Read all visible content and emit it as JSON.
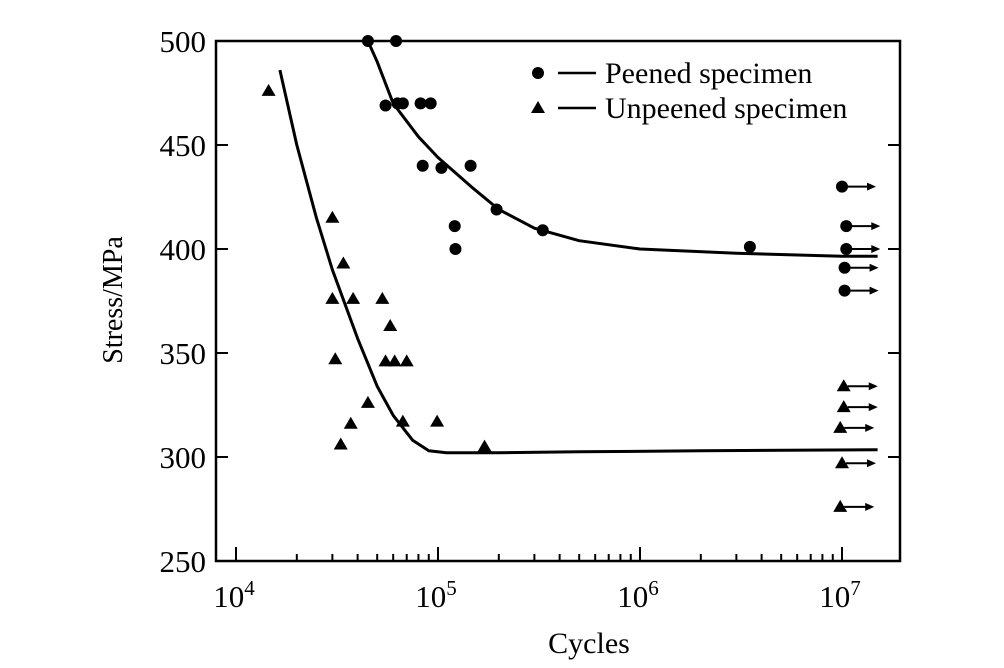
{
  "chart_data": {
    "type": "scatter",
    "xlabel": "Cycles",
    "ylabel": "Stress/MPa",
    "x_scale": "log",
    "xlim": [
      10000,
      20000000
    ],
    "ylim": [
      250,
      500
    ],
    "x_ticks": [
      {
        "value": 10000,
        "base": "10",
        "exp": "4"
      },
      {
        "value": 100000,
        "base": "10",
        "exp": "5"
      },
      {
        "value": 1000000,
        "base": "10",
        "exp": "6"
      },
      {
        "value": 10000000,
        "base": "10",
        "exp": "7"
      }
    ],
    "y_ticks": [
      "250",
      "300",
      "350",
      "400",
      "450",
      "500"
    ],
    "legend_position": "top-right",
    "series": [
      {
        "name": "Peened specimen",
        "marker": "circle",
        "points": [
          {
            "x": 45000,
            "y": 500
          },
          {
            "x": 62000,
            "y": 500
          },
          {
            "x": 55000,
            "y": 469
          },
          {
            "x": 63000,
            "y": 470
          },
          {
            "x": 67000,
            "y": 470
          },
          {
            "x": 82000,
            "y": 470
          },
          {
            "x": 92000,
            "y": 470
          },
          {
            "x": 84000,
            "y": 440
          },
          {
            "x": 104000,
            "y": 439
          },
          {
            "x": 145000,
            "y": 440
          },
          {
            "x": 121000,
            "y": 411
          },
          {
            "x": 122000,
            "y": 400
          },
          {
            "x": 195000,
            "y": 419
          },
          {
            "x": 330000,
            "y": 409
          },
          {
            "x": 3500000,
            "y": 401
          }
        ],
        "runouts": [
          {
            "x": 10000000,
            "y": 430
          },
          {
            "x": 10500000,
            "y": 411
          },
          {
            "x": 10500000,
            "y": 400
          },
          {
            "x": 10300000,
            "y": 391
          },
          {
            "x": 10300000,
            "y": 380
          }
        ],
        "curve": [
          {
            "x": 45000,
            "y": 500
          },
          {
            "x": 50000,
            "y": 490
          },
          {
            "x": 60000,
            "y": 470
          },
          {
            "x": 80000,
            "y": 454
          },
          {
            "x": 100000,
            "y": 444
          },
          {
            "x": 150000,
            "y": 429
          },
          {
            "x": 200000,
            "y": 419
          },
          {
            "x": 300000,
            "y": 410
          },
          {
            "x": 500000,
            "y": 404
          },
          {
            "x": 1000000,
            "y": 400
          },
          {
            "x": 3000000,
            "y": 398
          },
          {
            "x": 10000000,
            "y": 396.5
          },
          {
            "x": 15000000,
            "y": 396.5
          }
        ]
      },
      {
        "name": "Unpeened specimen",
        "marker": "triangle",
        "points": [
          {
            "x": 14500,
            "y": 476
          },
          {
            "x": 30000,
            "y": 415
          },
          {
            "x": 34000,
            "y": 393
          },
          {
            "x": 30000,
            "y": 376
          },
          {
            "x": 38000,
            "y": 376
          },
          {
            "x": 53000,
            "y": 376
          },
          {
            "x": 58000,
            "y": 363
          },
          {
            "x": 31000,
            "y": 347
          },
          {
            "x": 55000,
            "y": 346
          },
          {
            "x": 61000,
            "y": 346
          },
          {
            "x": 70000,
            "y": 346
          },
          {
            "x": 45000,
            "y": 326
          },
          {
            "x": 37000,
            "y": 316
          },
          {
            "x": 67000,
            "y": 317
          },
          {
            "x": 99000,
            "y": 317
          },
          {
            "x": 33000,
            "y": 306
          },
          {
            "x": 170000,
            "y": 305
          }
        ],
        "runouts": [
          {
            "x": 10200000,
            "y": 334
          },
          {
            "x": 10200000,
            "y": 324
          },
          {
            "x": 9800000,
            "y": 314
          },
          {
            "x": 10000000,
            "y": 297
          },
          {
            "x": 9800000,
            "y": 276
          }
        ],
        "curve": [
          {
            "x": 16500,
            "y": 486
          },
          {
            "x": 20000,
            "y": 450
          },
          {
            "x": 25000,
            "y": 415
          },
          {
            "x": 30000,
            "y": 390
          },
          {
            "x": 40000,
            "y": 357
          },
          {
            "x": 50000,
            "y": 334
          },
          {
            "x": 60000,
            "y": 320
          },
          {
            "x": 75000,
            "y": 308
          },
          {
            "x": 90000,
            "y": 303
          },
          {
            "x": 110000,
            "y": 302
          },
          {
            "x": 200000,
            "y": 302
          },
          {
            "x": 500000,
            "y": 302.5
          },
          {
            "x": 2000000,
            "y": 303
          },
          {
            "x": 15000000,
            "y": 303.5
          }
        ]
      }
    ]
  }
}
